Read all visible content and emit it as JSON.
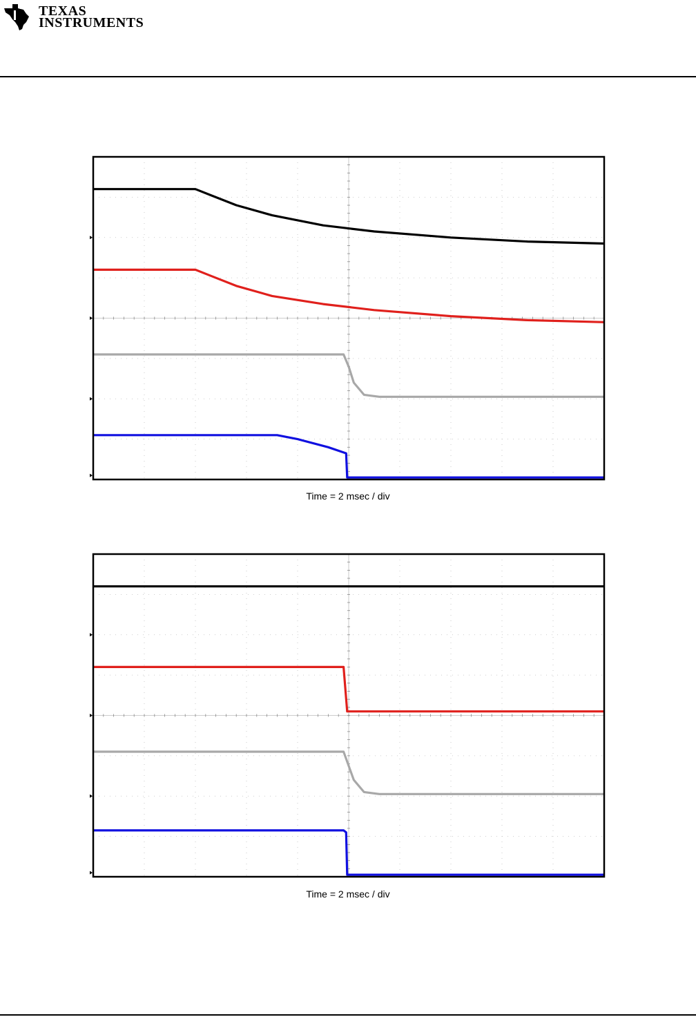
{
  "header": {
    "logo_line1": "TEXAS",
    "logo_line2": "INSTRUMENTS"
  },
  "chart_data": [
    {
      "type": "line",
      "xlabel": "Time = 2 msec / div",
      "divisions": {
        "x": 10,
        "y": 8
      },
      "grid": true,
      "x_unit": "div",
      "series": [
        {
          "color": "#000000",
          "marker_div": 2.0,
          "points": [
            [
              0,
              0.8
            ],
            [
              2.0,
              0.8
            ],
            [
              2.3,
              0.95
            ],
            [
              2.8,
              1.2
            ],
            [
              3.5,
              1.45
            ],
            [
              4.5,
              1.7
            ],
            [
              5.5,
              1.85
            ],
            [
              7,
              2.0
            ],
            [
              8.5,
              2.1
            ],
            [
              10,
              2.15
            ]
          ]
        },
        {
          "color": "#e0201c",
          "marker_div": 4.0,
          "points": [
            [
              0,
              2.8
            ],
            [
              2.0,
              2.8
            ],
            [
              2.3,
              2.95
            ],
            [
              2.8,
              3.2
            ],
            [
              3.5,
              3.45
            ],
            [
              4.5,
              3.65
            ],
            [
              5.5,
              3.8
            ],
            [
              7,
              3.95
            ],
            [
              8.5,
              4.05
            ],
            [
              10,
              4.1
            ]
          ]
        },
        {
          "color": "#a8a8a8",
          "marker_div": 6.0,
          "points": [
            [
              0,
              4.9
            ],
            [
              4.9,
              4.9
            ],
            [
              5.0,
              5.2
            ],
            [
              5.1,
              5.6
            ],
            [
              5.3,
              5.9
            ],
            [
              5.6,
              5.95
            ],
            [
              10,
              5.95
            ]
          ]
        },
        {
          "color": "#1010e0",
          "marker_div": 7.9,
          "points": [
            [
              0,
              6.9
            ],
            [
              3.6,
              6.9
            ],
            [
              4.0,
              7.0
            ],
            [
              4.6,
              7.2
            ],
            [
              4.95,
              7.35
            ],
            [
              4.97,
              7.95
            ],
            [
              10,
              7.95
            ]
          ]
        }
      ]
    },
    {
      "type": "line",
      "xlabel": "Time = 2 msec / div",
      "divisions": {
        "x": 10,
        "y": 8
      },
      "grid": true,
      "x_unit": "div",
      "series": [
        {
          "color": "#000000",
          "marker_div": 2.0,
          "points": [
            [
              0,
              0.8
            ],
            [
              10,
              0.8
            ]
          ]
        },
        {
          "color": "#e0201c",
          "marker_div": 4.0,
          "points": [
            [
              0,
              2.8
            ],
            [
              4.9,
              2.8
            ],
            [
              4.97,
              3.9
            ],
            [
              10,
              3.9
            ]
          ]
        },
        {
          "color": "#a8a8a8",
          "marker_div": 6.0,
          "points": [
            [
              0,
              4.9
            ],
            [
              4.9,
              4.9
            ],
            [
              5.0,
              5.25
            ],
            [
              5.1,
              5.6
            ],
            [
              5.3,
              5.9
            ],
            [
              5.6,
              5.95
            ],
            [
              10,
              5.95
            ]
          ]
        },
        {
          "color": "#1010e0",
          "marker_div": 7.9,
          "points": [
            [
              0,
              6.85
            ],
            [
              4.9,
              6.85
            ],
            [
              4.95,
              6.9
            ],
            [
              4.97,
              7.95
            ],
            [
              10,
              7.95
            ]
          ]
        }
      ]
    }
  ]
}
